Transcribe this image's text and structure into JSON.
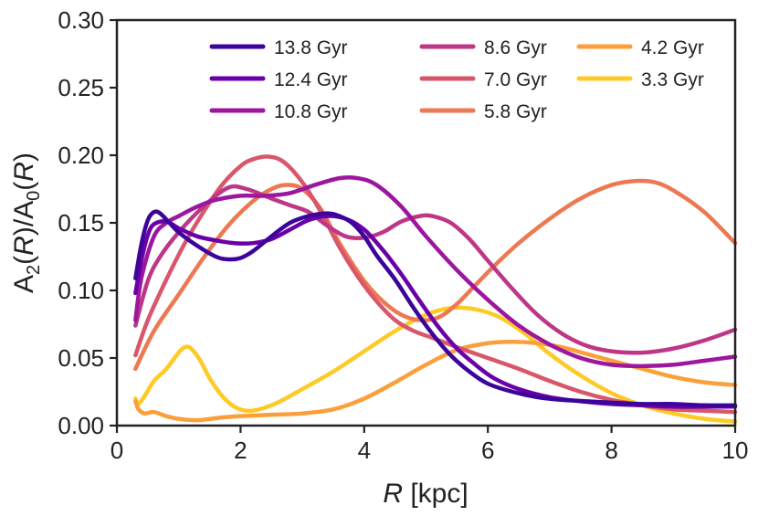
{
  "chart_data": {
    "type": "line",
    "title": "",
    "xlabel": "R [kpc]",
    "ylabel": "A2(R)/A0(R)",
    "xlim": [
      0,
      10
    ],
    "ylim": [
      0,
      0.3
    ],
    "x_ticks": [
      "0",
      "2",
      "4",
      "6",
      "8",
      "10"
    ],
    "y_ticks": [
      "0.00",
      "0.05",
      "0.10",
      "0.15",
      "0.20",
      "0.25",
      "0.30"
    ],
    "legend_position": "top-right",
    "series": [
      {
        "name": "13.8 Gyr",
        "color": "#3b049a",
        "x": [
          0.3,
          0.4,
          0.5,
          0.6,
          0.7,
          0.85,
          1.0,
          1.3,
          1.6,
          1.8,
          2.0,
          2.2,
          2.5,
          2.8,
          3.1,
          3.4,
          3.6,
          3.8,
          4.0,
          4.2,
          4.5,
          4.8,
          5.1,
          5.4,
          5.7,
          6.0,
          6.4,
          6.8,
          7.2,
          7.6,
          8.0,
          8.5,
          9.0,
          9.5,
          10.0
        ],
        "y": [
          0.109,
          0.135,
          0.152,
          0.158,
          0.157,
          0.15,
          0.143,
          0.133,
          0.125,
          0.123,
          0.124,
          0.129,
          0.14,
          0.15,
          0.155,
          0.157,
          0.155,
          0.15,
          0.14,
          0.126,
          0.108,
          0.087,
          0.068,
          0.052,
          0.04,
          0.031,
          0.025,
          0.021,
          0.019,
          0.018,
          0.017,
          0.016,
          0.016,
          0.015,
          0.015
        ]
      },
      {
        "name": "12.4 Gyr",
        "color": "#6a00a8",
        "x": [
          0.3,
          0.4,
          0.5,
          0.6,
          0.8,
          1.0,
          1.3,
          1.6,
          1.9,
          2.2,
          2.5,
          2.8,
          3.1,
          3.4,
          3.7,
          4.0,
          4.3,
          4.6,
          4.9,
          5.2,
          5.5,
          5.8,
          6.1,
          6.5,
          7.0,
          7.5,
          8.0,
          8.5,
          9.0,
          9.5,
          10.0
        ],
        "y": [
          0.098,
          0.123,
          0.141,
          0.149,
          0.151,
          0.146,
          0.14,
          0.137,
          0.135,
          0.135,
          0.138,
          0.145,
          0.152,
          0.155,
          0.153,
          0.145,
          0.13,
          0.112,
          0.092,
          0.073,
          0.057,
          0.045,
          0.035,
          0.027,
          0.021,
          0.018,
          0.016,
          0.015,
          0.014,
          0.014,
          0.014
        ]
      },
      {
        "name": "10.8 Gyr",
        "color": "#9c179e",
        "x": [
          0.3,
          0.4,
          0.6,
          0.8,
          1.0,
          1.3,
          1.6,
          2.0,
          2.4,
          2.8,
          3.2,
          3.6,
          3.9,
          4.2,
          4.6,
          5.0,
          5.5,
          6.0,
          6.5,
          7.0,
          7.5,
          8.0,
          8.5,
          9.0,
          9.5,
          10.0
        ],
        "y": [
          0.078,
          0.11,
          0.14,
          0.15,
          0.155,
          0.162,
          0.167,
          0.17,
          0.17,
          0.172,
          0.178,
          0.183,
          0.183,
          0.178,
          0.162,
          0.14,
          0.115,
          0.093,
          0.074,
          0.06,
          0.05,
          0.045,
          0.044,
          0.045,
          0.048,
          0.051
        ]
      },
      {
        "name": "8.6 Gyr",
        "color": "#bd3786",
        "x": [
          0.3,
          0.5,
          0.7,
          1.0,
          1.4,
          1.8,
          2.1,
          2.5,
          2.8,
          3.1,
          3.4,
          3.7,
          4.0,
          4.3,
          4.6,
          4.9,
          5.1,
          5.4,
          5.7,
          6.0,
          6.4,
          6.8,
          7.2,
          7.6,
          8.0,
          8.5,
          9.0,
          9.5,
          10.0
        ],
        "y": [
          0.074,
          0.107,
          0.125,
          0.143,
          0.162,
          0.176,
          0.175,
          0.168,
          0.163,
          0.158,
          0.148,
          0.14,
          0.139,
          0.143,
          0.151,
          0.155,
          0.155,
          0.15,
          0.138,
          0.122,
          0.101,
          0.082,
          0.068,
          0.059,
          0.055,
          0.054,
          0.057,
          0.063,
          0.071
        ]
      },
      {
        "name": "7.0 Gyr",
        "color": "#d8576b",
        "x": [
          0.3,
          0.5,
          0.8,
          1.1,
          1.4,
          1.7,
          2.0,
          2.2,
          2.45,
          2.7,
          3.0,
          3.3,
          3.6,
          3.9,
          4.2,
          4.5,
          4.8,
          5.1,
          5.5,
          6.0,
          6.5,
          7.0,
          7.5,
          8.0,
          8.5,
          9.0,
          9.5,
          10.0
        ],
        "y": [
          0.052,
          0.078,
          0.108,
          0.135,
          0.158,
          0.178,
          0.192,
          0.197,
          0.199,
          0.195,
          0.18,
          0.158,
          0.132,
          0.11,
          0.092,
          0.078,
          0.07,
          0.065,
          0.058,
          0.05,
          0.042,
          0.033,
          0.025,
          0.019,
          0.015,
          0.012,
          0.011,
          0.01
        ]
      },
      {
        "name": "5.8 Gyr",
        "color": "#ed7953",
        "x": [
          0.3,
          0.6,
          1.0,
          1.4,
          1.8,
          2.2,
          2.5,
          2.75,
          3.0,
          3.3,
          3.6,
          4.0,
          4.3,
          4.6,
          4.9,
          5.2,
          5.5,
          5.8,
          6.1,
          6.5,
          7.0,
          7.5,
          8.0,
          8.4,
          8.7,
          9.0,
          9.5,
          10.0
        ],
        "y": [
          0.042,
          0.07,
          0.097,
          0.124,
          0.148,
          0.166,
          0.175,
          0.178,
          0.175,
          0.16,
          0.135,
          0.107,
          0.092,
          0.082,
          0.078,
          0.08,
          0.09,
          0.104,
          0.118,
          0.135,
          0.153,
          0.168,
          0.178,
          0.181,
          0.18,
          0.174,
          0.158,
          0.135
        ]
      },
      {
        "name": "4.2 Gyr",
        "color": "#fb9f3a",
        "x": [
          0.3,
          0.35,
          0.45,
          0.6,
          0.8,
          1.0,
          1.3,
          1.7,
          2.0,
          2.5,
          3.0,
          3.5,
          4.0,
          4.5,
          5.0,
          5.5,
          6.0,
          6.4,
          6.8,
          7.2,
          7.6,
          8.0,
          8.5,
          9.0,
          9.5,
          10.0
        ],
        "y": [
          0.018,
          0.012,
          0.009,
          0.01,
          0.007,
          0.005,
          0.004,
          0.006,
          0.007,
          0.008,
          0.009,
          0.012,
          0.02,
          0.032,
          0.045,
          0.056,
          0.061,
          0.062,
          0.061,
          0.058,
          0.053,
          0.048,
          0.042,
          0.036,
          0.032,
          0.03
        ]
      },
      {
        "name": "3.3 Gyr",
        "color": "#fdca26",
        "x": [
          0.3,
          0.35,
          0.45,
          0.6,
          0.8,
          1.0,
          1.1,
          1.2,
          1.35,
          1.5,
          1.7,
          1.9,
          2.1,
          2.3,
          2.6,
          3.0,
          3.5,
          4.0,
          4.5,
          5.0,
          5.4,
          5.8,
          6.2,
          6.6,
          7.0,
          7.5,
          8.0,
          8.5,
          9.0,
          9.5,
          10.0
        ],
        "y": [
          0.02,
          0.016,
          0.022,
          0.033,
          0.042,
          0.054,
          0.058,
          0.057,
          0.048,
          0.035,
          0.022,
          0.014,
          0.011,
          0.012,
          0.017,
          0.027,
          0.04,
          0.055,
          0.07,
          0.082,
          0.087,
          0.086,
          0.08,
          0.068,
          0.053,
          0.037,
          0.024,
          0.015,
          0.009,
          0.005,
          0.003
        ]
      }
    ]
  }
}
